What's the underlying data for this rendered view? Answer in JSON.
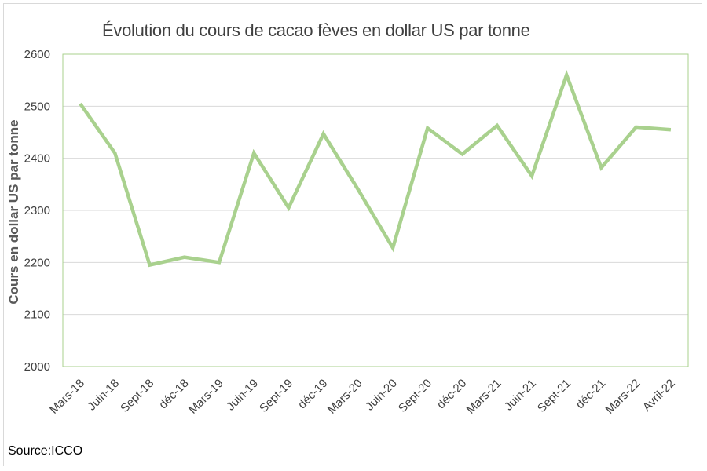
{
  "chart_data": {
    "type": "line",
    "title": "Évolution du cours de cacao fèves en dollar US par tonne",
    "xlabel": "",
    "ylabel": "Cours en dollar US par tonne",
    "ylim": [
      2000,
      2600
    ],
    "yticks": [
      "2000",
      "2100",
      "2200",
      "2300",
      "2400",
      "2500",
      "2600"
    ],
    "grid": true,
    "categories": [
      "Mars-18",
      "Juin-18",
      "Sept-18",
      "déc-18",
      "Mars-19",
      "Juin-19",
      "Sept-19",
      "déc-19",
      "Mars-20",
      "Juin-20",
      "Sept-20",
      "déc-20",
      "Mars-21",
      "Juin-21",
      "Sept-21",
      "déc-21",
      "Mars-22",
      "Avril-22"
    ],
    "series": [
      {
        "values": [
          2505,
          2410,
          2195,
          2210,
          2200,
          2410,
          2305,
          2447,
          2340,
          2228,
          2458,
          2408,
          2463,
          2366,
          2560,
          2382,
          2460,
          2455
        ],
        "color": "#a9d18e"
      }
    ],
    "source": "Source:ICCO"
  }
}
